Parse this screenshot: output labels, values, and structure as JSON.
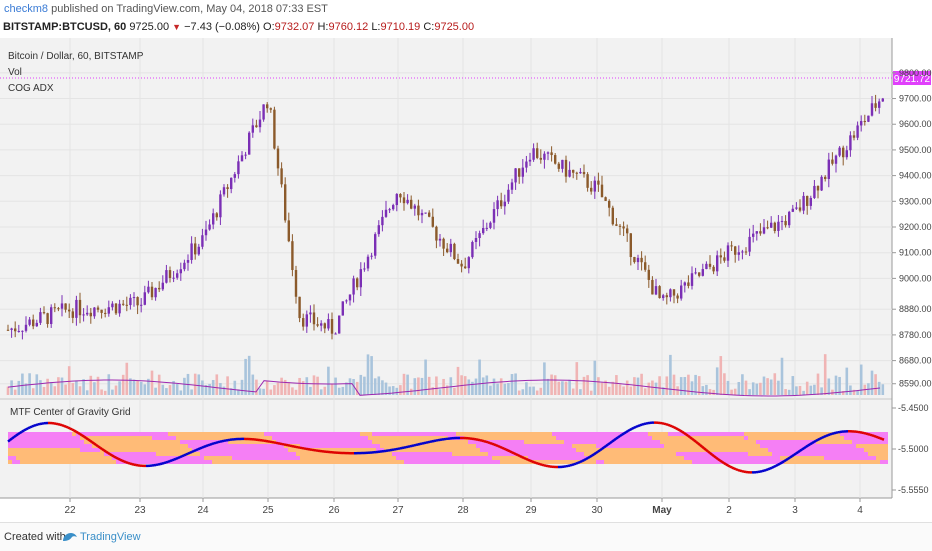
{
  "header": {
    "author": "checkm8",
    "published_text": "published on TradingView.com, May 04, 2018 07:33 EST",
    "symbol": "BITSTAMP:BTCUSD, 60",
    "last": "9725.00",
    "change": "−7.43 (−0.08%)",
    "ohlc": {
      "o_label": "O:",
      "o": "9732.07",
      "h_label": "H:",
      "h": "9760.12",
      "l_label": "L:",
      "l": "9710.19",
      "c_label": "C:",
      "c": "9725.00"
    }
  },
  "chart": {
    "legend": [
      "Bitcoin / Dollar, 60, BITSTAMP",
      "Vol",
      "COG ADX"
    ],
    "price_axis": [
      "9800.00",
      "9700.00",
      "9600.00",
      "9500.00",
      "9400.00",
      "9300.00",
      "9200.00",
      "9100.00",
      "9000.00",
      "8880.00",
      "8780.00",
      "8680.00",
      "8590.00"
    ],
    "price_label": "9721.72",
    "indicator_title": "MTF Center of Gravity Grid",
    "indicator_axis": [
      "-5.4500",
      "-5.5000",
      "-5.5550"
    ],
    "x_labels": [
      "22",
      "23",
      "24",
      "25",
      "26",
      "27",
      "28",
      "29",
      "30",
      "May",
      "2",
      "3",
      "4"
    ]
  },
  "chart_data": {
    "type": "candlestick",
    "title": "Bitcoin / Dollar, 60, BITSTAMP",
    "interval": "60",
    "x_categories": [
      "22",
      "23",
      "24",
      "25",
      "26",
      "27",
      "28",
      "29",
      "30",
      "May",
      "2",
      "3",
      "4"
    ],
    "ylim": [
      8550,
      9850
    ],
    "approx_trend": [
      {
        "x": "21",
        "y": 8800
      },
      {
        "x": "22",
        "y": 8880
      },
      {
        "x": "23",
        "y": 8900
      },
      {
        "x": "24",
        "y": 9150
      },
      {
        "x": "25",
        "y": 9700
      },
      {
        "x": "25.5",
        "y": 8850
      },
      {
        "x": "26",
        "y": 8800
      },
      {
        "x": "27",
        "y": 9350
      },
      {
        "x": "28",
        "y": 9050
      },
      {
        "x": "29",
        "y": 9500
      },
      {
        "x": "30",
        "y": 9350
      },
      {
        "x": "May",
        "y": 8900
      },
      {
        "x": "2",
        "y": 9100
      },
      {
        "x": "3",
        "y": 9250
      },
      {
        "x": "4",
        "y": 9725
      }
    ],
    "last_close": 9725.0,
    "marked_price": 9721.72,
    "indicator": {
      "name": "MTF Center of Gravity Grid",
      "ylim": [
        -5.555,
        -5.45
      ]
    },
    "colors": {
      "up": "#7b2fb5",
      "down": "#8b5a2b",
      "marker": "#e040fb",
      "cog_up": "#0000cc",
      "cog_down": "#dd0000",
      "grid_pink": "#f57ff5",
      "grid_orange": "#ffbb77"
    }
  },
  "footer": {
    "created_with": "Created with",
    "brand": "TradingView"
  }
}
